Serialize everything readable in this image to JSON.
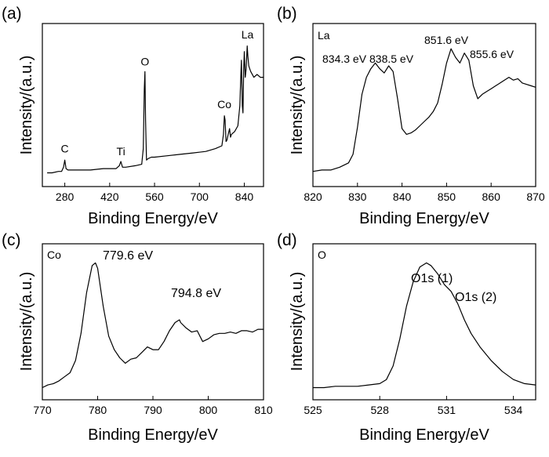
{
  "chart_data": [
    {
      "id": "a",
      "panel_label": "(a)",
      "type": "line",
      "xlabel": "Binding Energy/eV",
      "ylabel": "Intensity/(a.u.)",
      "xlim": [
        210,
        900
      ],
      "ylim": [
        0,
        1
      ],
      "xticks": [
        280,
        420,
        560,
        700,
        840
      ],
      "tick_labels": [
        "280",
        "420",
        "560",
        "700",
        "840"
      ],
      "element_tags": [
        {
          "text": "C",
          "x": 280,
          "y": 0.14
        },
        {
          "text": "Ti",
          "x": 455,
          "y": 0.12
        },
        {
          "text": "O",
          "x": 530,
          "y": 0.75
        },
        {
          "text": "Co",
          "x": 778,
          "y": 0.45
        },
        {
          "text": "La",
          "x": 850,
          "y": 0.94
        }
      ],
      "series": [
        {
          "x": [
            225,
            240,
            260,
            270,
            276,
            280,
            284,
            290,
            320,
            360,
            400,
            440,
            450,
            455,
            460,
            470,
            500,
            520,
            525,
            528,
            530,
            532,
            535,
            540,
            550,
            560,
            600,
            640,
            680,
            720,
            750,
            770,
            775,
            778,
            780,
            783,
            786,
            790,
            794,
            797,
            800,
            810,
            820,
            826,
            829,
            831,
            834,
            836,
            838,
            840,
            843,
            846,
            849,
            851,
            854,
            857,
            860,
            870,
            880,
            890,
            900
          ],
          "y": [
            0.03,
            0.03,
            0.04,
            0.04,
            0.07,
            0.12,
            0.06,
            0.05,
            0.05,
            0.05,
            0.06,
            0.06,
            0.08,
            0.11,
            0.07,
            0.07,
            0.08,
            0.09,
            0.2,
            0.62,
            0.74,
            0.4,
            0.12,
            0.13,
            0.14,
            0.14,
            0.15,
            0.16,
            0.17,
            0.18,
            0.2,
            0.22,
            0.3,
            0.43,
            0.4,
            0.25,
            0.26,
            0.3,
            0.34,
            0.28,
            0.3,
            0.32,
            0.36,
            0.5,
            0.7,
            0.82,
            0.5,
            0.45,
            0.75,
            0.88,
            0.7,
            0.76,
            0.92,
            0.85,
            0.78,
            0.76,
            0.74,
            0.7,
            0.72,
            0.7,
            0.7
          ]
        }
      ]
    },
    {
      "id": "b",
      "panel_label": "(b)",
      "type": "line",
      "xlabel": "Binding Energy/eV",
      "ylabel": "Intensity/(a.u.)",
      "xlim": [
        820,
        870
      ],
      "ylim": [
        0,
        1
      ],
      "xticks": [
        820,
        830,
        840,
        850,
        860,
        870
      ],
      "tick_labels": [
        "820",
        "830",
        "840",
        "850",
        "860",
        "870"
      ],
      "element_tag": "La",
      "peak_labels": [
        "834.3 eV",
        "838.5 eV",
        "851.6 eV",
        "855.6 eV"
      ],
      "series": [
        {
          "x": [
            820,
            822,
            824,
            826,
            828,
            829,
            830,
            831,
            832,
            833,
            834,
            835,
            836,
            837,
            838,
            839,
            840,
            841,
            842,
            843,
            844,
            845,
            846,
            847,
            848,
            849,
            850,
            851,
            852,
            853,
            854,
            855,
            856,
            857,
            858,
            859,
            860,
            861,
            862,
            863,
            864,
            865,
            866,
            867,
            868,
            869,
            870
          ],
          "y": [
            0.04,
            0.05,
            0.05,
            0.07,
            0.1,
            0.16,
            0.35,
            0.58,
            0.7,
            0.76,
            0.8,
            0.76,
            0.73,
            0.78,
            0.74,
            0.55,
            0.34,
            0.3,
            0.31,
            0.33,
            0.36,
            0.39,
            0.42,
            0.46,
            0.52,
            0.65,
            0.8,
            0.9,
            0.84,
            0.8,
            0.87,
            0.82,
            0.64,
            0.55,
            0.58,
            0.6,
            0.62,
            0.64,
            0.66,
            0.68,
            0.7,
            0.68,
            0.69,
            0.66,
            0.65,
            0.64,
            0.63
          ]
        }
      ]
    },
    {
      "id": "c",
      "panel_label": "(c)",
      "type": "line",
      "xlabel": "Binding Energy/eV",
      "ylabel": "Intensity/(a.u.)",
      "xlim": [
        770,
        810
      ],
      "ylim": [
        0,
        1
      ],
      "xticks": [
        770,
        780,
        790,
        800,
        810
      ],
      "tick_labels": [
        "770",
        "780",
        "790",
        "800",
        "810"
      ],
      "element_tag": "Co",
      "peak_labels": [
        "779.6 eV",
        "794.8 eV"
      ],
      "series": [
        {
          "x": [
            770,
            771,
            772,
            773,
            774,
            775,
            776,
            777,
            778,
            779,
            779.6,
            780,
            781,
            782,
            783,
            784,
            785,
            786,
            787,
            788,
            789,
            790,
            791,
            792,
            793,
            794,
            794.8,
            795,
            796,
            797,
            798,
            799,
            800,
            801,
            802,
            803,
            804,
            805,
            806,
            807,
            808,
            809,
            810
          ],
          "y": [
            0.02,
            0.04,
            0.05,
            0.07,
            0.1,
            0.13,
            0.22,
            0.42,
            0.72,
            0.92,
            0.94,
            0.9,
            0.62,
            0.4,
            0.3,
            0.24,
            0.2,
            0.23,
            0.24,
            0.28,
            0.32,
            0.3,
            0.3,
            0.36,
            0.44,
            0.5,
            0.52,
            0.5,
            0.46,
            0.43,
            0.44,
            0.36,
            0.38,
            0.41,
            0.42,
            0.42,
            0.43,
            0.42,
            0.44,
            0.44,
            0.43,
            0.45,
            0.45
          ]
        }
      ]
    },
    {
      "id": "d",
      "panel_label": "(d)",
      "type": "line",
      "xlabel": "Binding Energy/eV",
      "ylabel": "Intensity/(a.u.)",
      "xlim": [
        525,
        535
      ],
      "ylim": [
        0,
        1
      ],
      "xticks": [
        525,
        528,
        531,
        534
      ],
      "tick_labels": [
        "525",
        "528",
        "531",
        "534"
      ],
      "element_tag": "O",
      "peak_labels": [
        "O1s (1)",
        "O1s (2)"
      ],
      "series": [
        {
          "x": [
            525,
            525.5,
            526,
            526.5,
            527,
            527.5,
            528,
            528.3,
            528.6,
            528.9,
            529.2,
            529.5,
            529.8,
            530.1,
            530.3,
            530.6,
            530.9,
            531.2,
            531.5,
            531.8,
            532.1,
            532.5,
            533,
            533.5,
            534,
            534.5,
            535
          ],
          "y": [
            0.02,
            0.02,
            0.03,
            0.03,
            0.03,
            0.04,
            0.05,
            0.08,
            0.18,
            0.38,
            0.62,
            0.8,
            0.91,
            0.94,
            0.92,
            0.86,
            0.78,
            0.73,
            0.64,
            0.52,
            0.42,
            0.32,
            0.22,
            0.14,
            0.08,
            0.05,
            0.04
          ]
        }
      ]
    }
  ]
}
